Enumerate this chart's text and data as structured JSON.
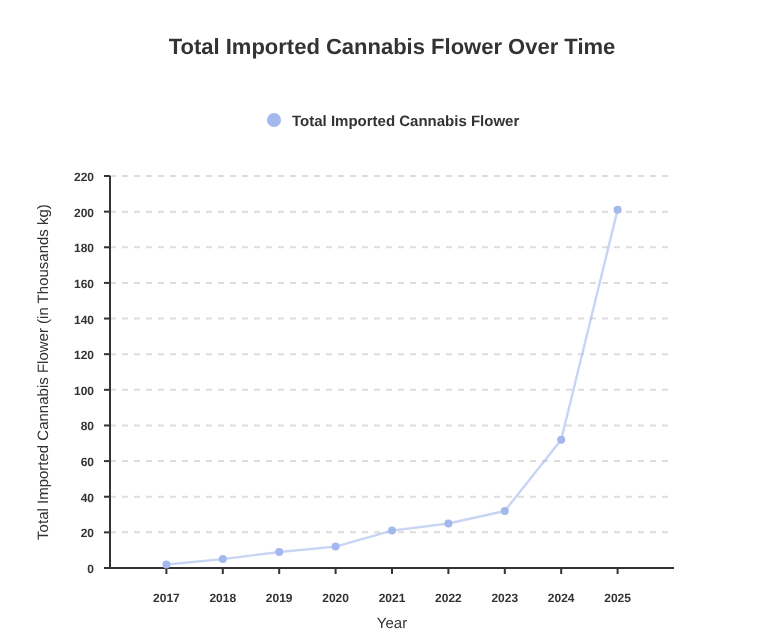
{
  "chart_data": {
    "type": "line",
    "title": "Total Imported Cannabis Flower Over Time",
    "xlabel": "Year",
    "ylabel": "Total Imported Cannabis Flower (in Thousands kg)",
    "categories": [
      "2017",
      "2018",
      "2019",
      "2020",
      "2021",
      "2022",
      "2023",
      "2024",
      "2025"
    ],
    "series": [
      {
        "name": "Total Imported Cannabis Flower",
        "color": "#a3b8ec",
        "values": [
          2,
          5,
          9,
          12,
          21,
          25,
          32,
          72,
          201
        ]
      }
    ],
    "ylim": [
      0,
      220
    ],
    "yticks": [
      0,
      20,
      40,
      60,
      80,
      100,
      120,
      140,
      160,
      180,
      200,
      220
    ],
    "grid": "y",
    "legend": "top",
    "marker": "circle",
    "line_style": "solid"
  }
}
